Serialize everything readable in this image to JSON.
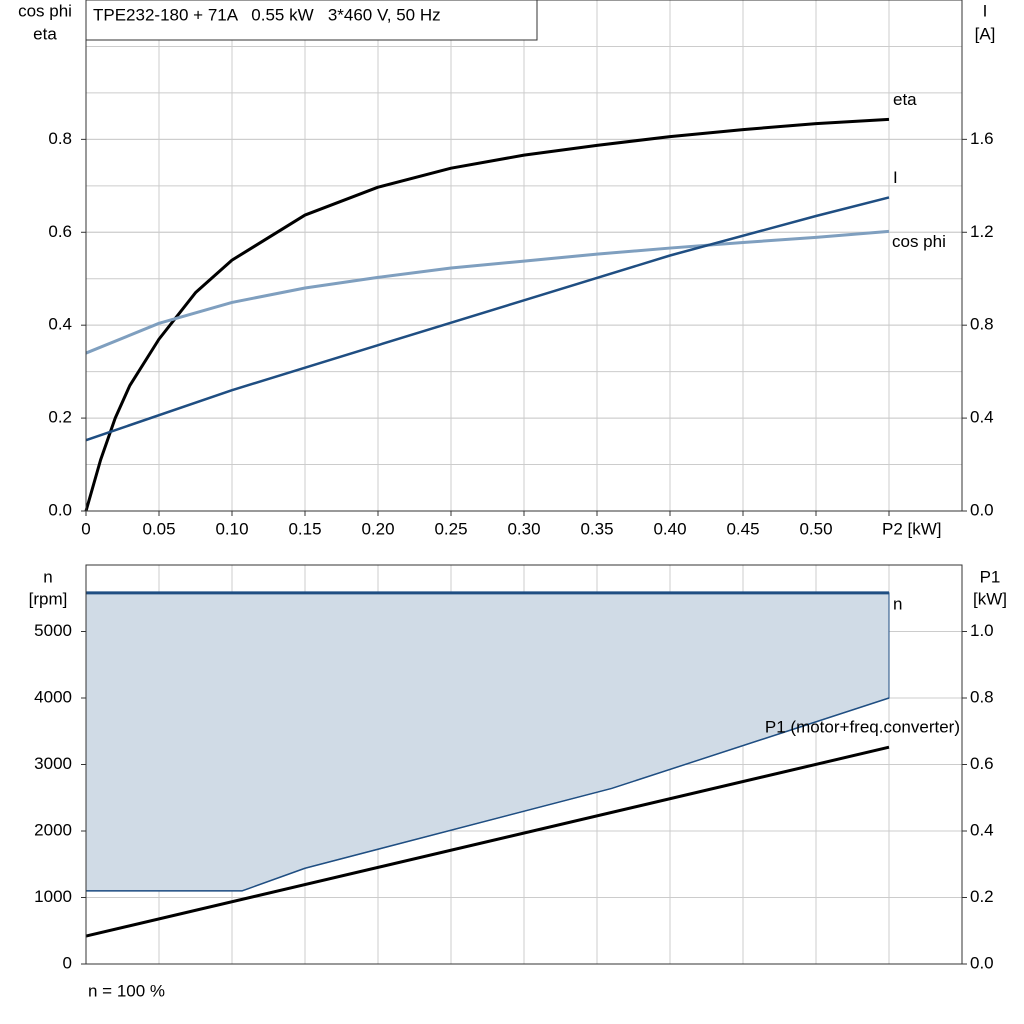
{
  "chart_data": [
    {
      "type": "line",
      "title": "TPE232-180 + 71A   0.55 kW   3*460 V, 50 Hz",
      "y_label": [
        "cos phi",
        "eta"
      ],
      "y2_label": [
        "I",
        "[A]"
      ],
      "xlim": [
        0,
        0.6
      ],
      "xticks": [
        0,
        0.05,
        {
          "value": 0.1,
          "label": "0.10"
        },
        0.15,
        {
          "value": 0.2,
          "label": "0.20"
        },
        0.25,
        {
          "value": 0.3,
          "label": "0.30"
        },
        0.35,
        {
          "value": 0.4,
          "label": "0.40"
        },
        0.45,
        {
          "value": 0.5,
          "label": "0.50"
        },
        {
          "value": 0.55,
          "label": "P2 [kW]"
        }
      ],
      "ylim": [
        0,
        1.1
      ],
      "yticks": [
        {
          "value": 0,
          "label": "0.0"
        },
        0.2,
        0.4,
        0.6,
        0.8
      ],
      "y2lim": [
        0,
        2.2
      ],
      "y2ticks": [
        {
          "value": 0,
          "label": "0.0"
        },
        0.4,
        0.8,
        1.2,
        1.6
      ],
      "grid": true,
      "minor_grid": true,
      "series": [
        {
          "name": "eta",
          "color": "#000000",
          "x": [
            0,
            0.01,
            0.02,
            0.03,
            0.05,
            0.075,
            0.1,
            0.15,
            0.2,
            0.25,
            0.3,
            0.35,
            0.4,
            0.45,
            0.5,
            0.55
          ],
          "values": [
            0,
            0.11,
            0.2,
            0.27,
            0.37,
            0.47,
            0.54,
            0.637,
            0.697,
            0.738,
            0.766,
            0.787,
            0.806,
            0.821,
            0.834,
            0.843
          ]
        },
        {
          "name": "cos phi",
          "color": "#7f9fbf",
          "x": [
            0,
            0.05,
            0.1,
            0.15,
            0.2,
            0.25,
            0.3,
            0.35,
            0.4,
            0.45,
            0.5,
            0.55
          ],
          "values": [
            0.34,
            0.404,
            0.449,
            0.48,
            0.503,
            0.523,
            0.538,
            0.553,
            0.566,
            0.578,
            0.589,
            0.602
          ]
        },
        {
          "name": "I",
          "color": "#1f4e82",
          "axis": "y2",
          "x": [
            0,
            0.1,
            0.2,
            0.3,
            0.4,
            0.5,
            0.55
          ],
          "values": [
            0.305,
            0.52,
            0.714,
            0.907,
            1.1,
            1.27,
            1.35
          ]
        }
      ]
    },
    {
      "type": "line",
      "y_label": [
        "n",
        "[rpm]"
      ],
      "y2_label": [
        "P1",
        "[kW]"
      ],
      "ylim": [
        0,
        6000
      ],
      "yticks": [
        0,
        1000,
        2000,
        3000,
        4000,
        5000
      ],
      "y2lim": [
        0,
        1.2
      ],
      "y2ticks": [
        {
          "value": 0,
          "label": "0.0"
        },
        0.2,
        0.4,
        0.6,
        0.8,
        {
          "value": 1,
          "label": "1.0"
        }
      ],
      "grid": true,
      "note": "n = 100 %",
      "series": [
        {
          "name": "n",
          "color": "#1f4e82",
          "fill_color": "#d0dbe6",
          "x": [
            0,
            0.107,
            0.15,
            0.36,
            0.55
          ],
          "values": [
            5580,
            5580,
            5580,
            5580,
            5580
          ],
          "lower": [
            1100,
            1100,
            1440,
            2640,
            4000
          ]
        },
        {
          "name": "P1 (motor+freq.converter)",
          "color": "#000000",
          "axis": "y2",
          "x": [
            0,
            0.55
          ],
          "values": [
            0.084,
            0.652
          ]
        }
      ]
    }
  ]
}
